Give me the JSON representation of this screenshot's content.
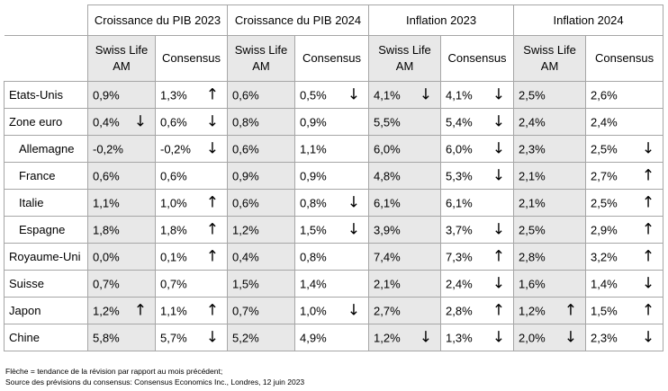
{
  "groups": [
    "Croissance du PIB 2023",
    "Croissance du PIB 2024",
    "Inflation 2023",
    "Inflation 2024"
  ],
  "subheaders": [
    "Swiss Life AM",
    "Consensus"
  ],
  "rows": [
    {
      "country": "Etats-Unis",
      "sub": false,
      "cells": [
        {
          "v": "0,9%",
          "a": ""
        },
        {
          "v": "1,3%",
          "a": "up"
        },
        {
          "v": "0,6%",
          "a": ""
        },
        {
          "v": "0,5%",
          "a": "down"
        },
        {
          "v": "4,1%",
          "a": "down"
        },
        {
          "v": "4,1%",
          "a": "down"
        },
        {
          "v": "2,5%",
          "a": ""
        },
        {
          "v": "2,6%",
          "a": ""
        }
      ]
    },
    {
      "country": "Zone euro",
      "sub": false,
      "cells": [
        {
          "v": "0,4%",
          "a": "down"
        },
        {
          "v": "0,6%",
          "a": "down"
        },
        {
          "v": "0,8%",
          "a": ""
        },
        {
          "v": "0,9%",
          "a": ""
        },
        {
          "v": "5,5%",
          "a": ""
        },
        {
          "v": "5,4%",
          "a": "down"
        },
        {
          "v": "2,4%",
          "a": ""
        },
        {
          "v": "2,4%",
          "a": ""
        }
      ]
    },
    {
      "country": "Allemagne",
      "sub": true,
      "cells": [
        {
          "v": "-0,2%",
          "a": ""
        },
        {
          "v": "-0,2%",
          "a": "down"
        },
        {
          "v": "0,6%",
          "a": ""
        },
        {
          "v": "1,1%",
          "a": ""
        },
        {
          "v": "6,0%",
          "a": ""
        },
        {
          "v": "6,0%",
          "a": "down"
        },
        {
          "v": "2,3%",
          "a": ""
        },
        {
          "v": "2,5%",
          "a": "down"
        }
      ]
    },
    {
      "country": "France",
      "sub": true,
      "cells": [
        {
          "v": "0,6%",
          "a": ""
        },
        {
          "v": "0,6%",
          "a": ""
        },
        {
          "v": "0,9%",
          "a": ""
        },
        {
          "v": "0,9%",
          "a": ""
        },
        {
          "v": "4,8%",
          "a": ""
        },
        {
          "v": "5,3%",
          "a": "down"
        },
        {
          "v": "2,1%",
          "a": ""
        },
        {
          "v": "2,7%",
          "a": "up"
        }
      ]
    },
    {
      "country": "Italie",
      "sub": true,
      "cells": [
        {
          "v": "1,1%",
          "a": ""
        },
        {
          "v": "1,0%",
          "a": "up"
        },
        {
          "v": "0,6%",
          "a": ""
        },
        {
          "v": "0,8%",
          "a": "down"
        },
        {
          "v": "6,1%",
          "a": ""
        },
        {
          "v": "6,1%",
          "a": ""
        },
        {
          "v": "2,1%",
          "a": ""
        },
        {
          "v": "2,5%",
          "a": "up"
        }
      ]
    },
    {
      "country": "Espagne",
      "sub": true,
      "cells": [
        {
          "v": "1,8%",
          "a": ""
        },
        {
          "v": "1,8%",
          "a": "up"
        },
        {
          "v": "1,2%",
          "a": ""
        },
        {
          "v": "1,5%",
          "a": "down"
        },
        {
          "v": "3,9%",
          "a": ""
        },
        {
          "v": "3,7%",
          "a": "down"
        },
        {
          "v": "2,5%",
          "a": ""
        },
        {
          "v": "2,9%",
          "a": "up"
        }
      ]
    },
    {
      "country": "Royaume-Uni",
      "sub": false,
      "cells": [
        {
          "v": "0,0%",
          "a": ""
        },
        {
          "v": "0,1%",
          "a": "up"
        },
        {
          "v": "0,4%",
          "a": ""
        },
        {
          "v": "0,8%",
          "a": ""
        },
        {
          "v": "7,4%",
          "a": ""
        },
        {
          "v": "7,3%",
          "a": "up"
        },
        {
          "v": "2,8%",
          "a": ""
        },
        {
          "v": "3,2%",
          "a": "up"
        }
      ]
    },
    {
      "country": "Suisse",
      "sub": false,
      "cells": [
        {
          "v": "0,7%",
          "a": ""
        },
        {
          "v": "0,7%",
          "a": ""
        },
        {
          "v": "1,5%",
          "a": ""
        },
        {
          "v": "1,4%",
          "a": ""
        },
        {
          "v": "2,1%",
          "a": ""
        },
        {
          "v": "2,4%",
          "a": "down"
        },
        {
          "v": "1,6%",
          "a": ""
        },
        {
          "v": "1,4%",
          "a": "down"
        }
      ]
    },
    {
      "country": "Japon",
      "sub": false,
      "cells": [
        {
          "v": "1,2%",
          "a": "up"
        },
        {
          "v": "1,1%",
          "a": "up"
        },
        {
          "v": "0,7%",
          "a": ""
        },
        {
          "v": "1,0%",
          "a": "down"
        },
        {
          "v": "2,7%",
          "a": ""
        },
        {
          "v": "2,8%",
          "a": "up"
        },
        {
          "v": "1,2%",
          "a": "up"
        },
        {
          "v": "1,5%",
          "a": "up"
        }
      ]
    },
    {
      "country": "Chine",
      "sub": false,
      "cells": [
        {
          "v": "5,8%",
          "a": ""
        },
        {
          "v": "5,7%",
          "a": "down"
        },
        {
          "v": "5,2%",
          "a": ""
        },
        {
          "v": "4,9%",
          "a": ""
        },
        {
          "v": "1,2%",
          "a": "down"
        },
        {
          "v": "1,3%",
          "a": "down"
        },
        {
          "v": "2,0%",
          "a": "down"
        },
        {
          "v": "2,3%",
          "a": "down"
        }
      ]
    }
  ],
  "arrow_icons": {
    "up": "↑",
    "down": "↓"
  },
  "colors": {
    "swiss_life_column_shade": "#e8e8e8",
    "grid_line": "#a6a6a6"
  },
  "footnotes": [
    "Flèche = tendance de la révision par rapport au mois précédent;",
    "Source des prévisions du consensus: Consensus Economics Inc., Londres, 12 juin 2023"
  ]
}
